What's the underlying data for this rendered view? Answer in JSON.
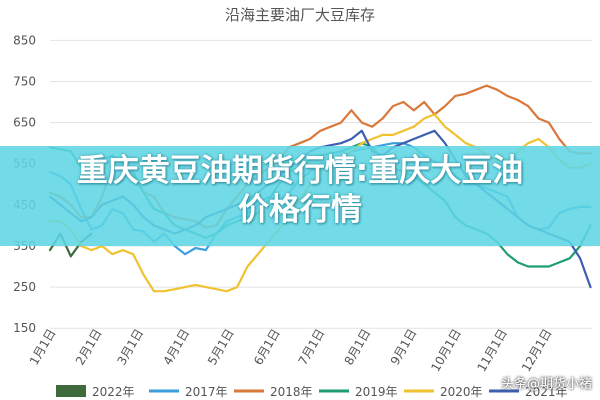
{
  "colors": {
    "s2022": "#3f6b3c",
    "s2017": "#3a9fdc",
    "s2018": "#d9783a",
    "s2019": "#1f9e73",
    "s2020": "#f0c230",
    "s2021": "#3c5fb0",
    "grid": "#e3e3e3",
    "axis_text": "#555555",
    "title": "#555555",
    "banner": "#5ed6e4"
  },
  "headline": {
    "line1": "重庆黄豆油期货行情:重庆大豆油",
    "line2": "价格行情"
  },
  "watermark": "头条@期货小褚",
  "chart_data": {
    "type": "line",
    "title": "沿海主要油厂大豆库存",
    "ylim": [
      170,
      880
    ],
    "yticks": [
      850,
      750,
      650,
      550,
      450,
      350,
      250,
      150
    ],
    "xlim": [
      0,
      365
    ],
    "xticks": [
      {
        "x": 0,
        "label": "1月1日"
      },
      {
        "x": 31,
        "label": "2月1日"
      },
      {
        "x": 59,
        "label": "3月1日"
      },
      {
        "x": 90,
        "label": "4月1日"
      },
      {
        "x": 120,
        "label": "5月1日"
      },
      {
        "x": 151,
        "label": "6月1日"
      },
      {
        "x": 181,
        "label": "7月1日"
      },
      {
        "x": 212,
        "label": "8月1日"
      },
      {
        "x": 243,
        "label": "9月1日"
      },
      {
        "x": 273,
        "label": "10月1日"
      },
      {
        "x": 304,
        "label": "11月1日"
      },
      {
        "x": 334,
        "label": "12月1日"
      }
    ],
    "legend_position": "bottom",
    "series": [
      {
        "name": "2022年",
        "color_key": "s2022",
        "points": [
          [
            0,
            340
          ],
          [
            7,
            380
          ],
          [
            14,
            325
          ],
          [
            21,
            360
          ],
          [
            28,
            380
          ]
        ]
      },
      {
        "name": "2017年",
        "color_key": "s2017",
        "points": [
          [
            0,
            530
          ],
          [
            7,
            520
          ],
          [
            14,
            500
          ],
          [
            21,
            440
          ],
          [
            28,
            390
          ],
          [
            35,
            400
          ],
          [
            42,
            440
          ],
          [
            49,
            430
          ],
          [
            56,
            390
          ],
          [
            63,
            385
          ],
          [
            70,
            360
          ],
          [
            77,
            380
          ],
          [
            84,
            350
          ],
          [
            91,
            330
          ],
          [
            98,
            345
          ],
          [
            105,
            340
          ],
          [
            112,
            380
          ],
          [
            119,
            410
          ],
          [
            126,
            420
          ],
          [
            133,
            430
          ],
          [
            140,
            450
          ],
          [
            147,
            470
          ],
          [
            154,
            460
          ],
          [
            161,
            480
          ],
          [
            168,
            510
          ],
          [
            175,
            530
          ],
          [
            182,
            550
          ],
          [
            189,
            555
          ],
          [
            196,
            565
          ],
          [
            203,
            580
          ],
          [
            210,
            585
          ],
          [
            217,
            590
          ],
          [
            224,
            595
          ],
          [
            231,
            600
          ],
          [
            238,
            600
          ],
          [
            245,
            590
          ],
          [
            252,
            570
          ],
          [
            259,
            555
          ],
          [
            266,
            545
          ],
          [
            273,
            520
          ],
          [
            280,
            500
          ],
          [
            287,
            500
          ],
          [
            294,
            490
          ],
          [
            301,
            480
          ],
          [
            308,
            470
          ],
          [
            315,
            420
          ],
          [
            322,
            400
          ],
          [
            329,
            390
          ],
          [
            336,
            395
          ],
          [
            343,
            430
          ],
          [
            350,
            440
          ],
          [
            357,
            445
          ],
          [
            364,
            445
          ]
        ]
      },
      {
        "name": "2018年",
        "color_key": "s2018",
        "points": [
          [
            0,
            480
          ],
          [
            7,
            470
          ],
          [
            14,
            450
          ],
          [
            21,
            420
          ],
          [
            28,
            420
          ],
          [
            35,
            470
          ],
          [
            42,
            540
          ],
          [
            49,
            545
          ],
          [
            56,
            520
          ],
          [
            63,
            480
          ],
          [
            70,
            470
          ],
          [
            77,
            430
          ],
          [
            84,
            420
          ],
          [
            91,
            415
          ],
          [
            98,
            410
          ],
          [
            105,
            395
          ],
          [
            112,
            400
          ],
          [
            119,
            440
          ],
          [
            126,
            470
          ],
          [
            133,
            500
          ],
          [
            140,
            520
          ],
          [
            147,
            540
          ],
          [
            154,
            560
          ],
          [
            161,
            590
          ],
          [
            168,
            600
          ],
          [
            175,
            610
          ],
          [
            182,
            630
          ],
          [
            189,
            640
          ],
          [
            196,
            650
          ],
          [
            203,
            680
          ],
          [
            210,
            650
          ],
          [
            217,
            640
          ],
          [
            224,
            660
          ],
          [
            231,
            690
          ],
          [
            238,
            700
          ],
          [
            245,
            680
          ],
          [
            252,
            700
          ],
          [
            259,
            670
          ],
          [
            266,
            690
          ],
          [
            273,
            715
          ],
          [
            280,
            720
          ],
          [
            287,
            730
          ],
          [
            294,
            740
          ],
          [
            301,
            730
          ],
          [
            308,
            715
          ],
          [
            315,
            705
          ],
          [
            322,
            690
          ],
          [
            329,
            660
          ],
          [
            336,
            650
          ],
          [
            343,
            610
          ],
          [
            350,
            580
          ],
          [
            357,
            575
          ],
          [
            364,
            575
          ]
        ]
      },
      {
        "name": "2019年",
        "color_key": "s2019",
        "points": [
          [
            0,
            590
          ],
          [
            7,
            585
          ],
          [
            14,
            580
          ],
          [
            21,
            540
          ],
          [
            28,
            530
          ],
          [
            35,
            560
          ],
          [
            42,
            570
          ],
          [
            49,
            550
          ],
          [
            56,
            530
          ],
          [
            63,
            480
          ],
          [
            70,
            440
          ],
          [
            77,
            430
          ],
          [
            84,
            400
          ],
          [
            91,
            390
          ],
          [
            98,
            380
          ],
          [
            105,
            370
          ],
          [
            112,
            380
          ],
          [
            119,
            400
          ],
          [
            126,
            410
          ],
          [
            133,
            420
          ],
          [
            140,
            430
          ],
          [
            147,
            460
          ],
          [
            154,
            500
          ],
          [
            161,
            530
          ],
          [
            168,
            540
          ],
          [
            175,
            560
          ],
          [
            182,
            570
          ],
          [
            189,
            575
          ],
          [
            196,
            580
          ],
          [
            203,
            590
          ],
          [
            210,
            600
          ],
          [
            217,
            590
          ],
          [
            224,
            560
          ],
          [
            231,
            540
          ],
          [
            238,
            530
          ],
          [
            245,
            520
          ],
          [
            252,
            500
          ],
          [
            259,
            480
          ],
          [
            266,
            460
          ],
          [
            273,
            420
          ],
          [
            280,
            400
          ],
          [
            287,
            390
          ],
          [
            294,
            380
          ],
          [
            301,
            360
          ],
          [
            308,
            330
          ],
          [
            315,
            310
          ],
          [
            322,
            300
          ],
          [
            329,
            300
          ],
          [
            336,
            300
          ],
          [
            343,
            310
          ],
          [
            350,
            320
          ],
          [
            357,
            350
          ],
          [
            364,
            400
          ]
        ]
      },
      {
        "name": "2020年",
        "color_key": "s2020",
        "points": [
          [
            0,
            410
          ],
          [
            7,
            410
          ],
          [
            14,
            390
          ],
          [
            21,
            350
          ],
          [
            28,
            340
          ],
          [
            35,
            350
          ],
          [
            42,
            330
          ],
          [
            49,
            340
          ],
          [
            56,
            330
          ],
          [
            63,
            280
          ],
          [
            70,
            240
          ],
          [
            77,
            240
          ],
          [
            84,
            245
          ],
          [
            91,
            250
          ],
          [
            98,
            255
          ],
          [
            105,
            250
          ],
          [
            112,
            245
          ],
          [
            119,
            240
          ],
          [
            126,
            250
          ],
          [
            133,
            300
          ],
          [
            140,
            330
          ],
          [
            147,
            360
          ],
          [
            154,
            390
          ],
          [
            161,
            420
          ],
          [
            168,
            460
          ],
          [
            175,
            500
          ],
          [
            182,
            530
          ],
          [
            189,
            550
          ],
          [
            196,
            560
          ],
          [
            203,
            580
          ],
          [
            210,
            600
          ],
          [
            217,
            610
          ],
          [
            224,
            620
          ],
          [
            231,
            620
          ],
          [
            238,
            630
          ],
          [
            245,
            640
          ],
          [
            252,
            660
          ],
          [
            259,
            670
          ],
          [
            266,
            640
          ],
          [
            273,
            620
          ],
          [
            280,
            600
          ],
          [
            287,
            590
          ],
          [
            294,
            570
          ],
          [
            301,
            560
          ],
          [
            308,
            560
          ],
          [
            315,
            580
          ],
          [
            322,
            600
          ],
          [
            329,
            610
          ],
          [
            336,
            590
          ],
          [
            343,
            560
          ],
          [
            350,
            540
          ],
          [
            357,
            540
          ],
          [
            364,
            550
          ]
        ]
      },
      {
        "name": "2021年",
        "color_key": "s2021",
        "points": [
          [
            0,
            470
          ],
          [
            7,
            450
          ],
          [
            14,
            430
          ],
          [
            21,
            410
          ],
          [
            28,
            420
          ],
          [
            35,
            450
          ],
          [
            42,
            460
          ],
          [
            49,
            470
          ],
          [
            56,
            450
          ],
          [
            63,
            420
          ],
          [
            70,
            400
          ],
          [
            77,
            390
          ],
          [
            84,
            380
          ],
          [
            91,
            390
          ],
          [
            98,
            400
          ],
          [
            105,
            420
          ],
          [
            112,
            430
          ],
          [
            119,
            440
          ],
          [
            126,
            450
          ],
          [
            133,
            460
          ],
          [
            140,
            480
          ],
          [
            147,
            500
          ],
          [
            154,
            520
          ],
          [
            161,
            540
          ],
          [
            168,
            560
          ],
          [
            175,
            580
          ],
          [
            182,
            590
          ],
          [
            189,
            595
          ],
          [
            196,
            600
          ],
          [
            203,
            610
          ],
          [
            210,
            630
          ],
          [
            217,
            580
          ],
          [
            224,
            570
          ],
          [
            231,
            590
          ],
          [
            238,
            600
          ],
          [
            245,
            610
          ],
          [
            252,
            620
          ],
          [
            259,
            630
          ],
          [
            266,
            600
          ],
          [
            273,
            560
          ],
          [
            280,
            520
          ],
          [
            287,
            500
          ],
          [
            294,
            480
          ],
          [
            301,
            460
          ],
          [
            308,
            440
          ],
          [
            315,
            420
          ],
          [
            322,
            400
          ],
          [
            329,
            390
          ],
          [
            336,
            380
          ],
          [
            343,
            370
          ],
          [
            350,
            360
          ],
          [
            357,
            320
          ],
          [
            364,
            250
          ]
        ]
      }
    ]
  }
}
